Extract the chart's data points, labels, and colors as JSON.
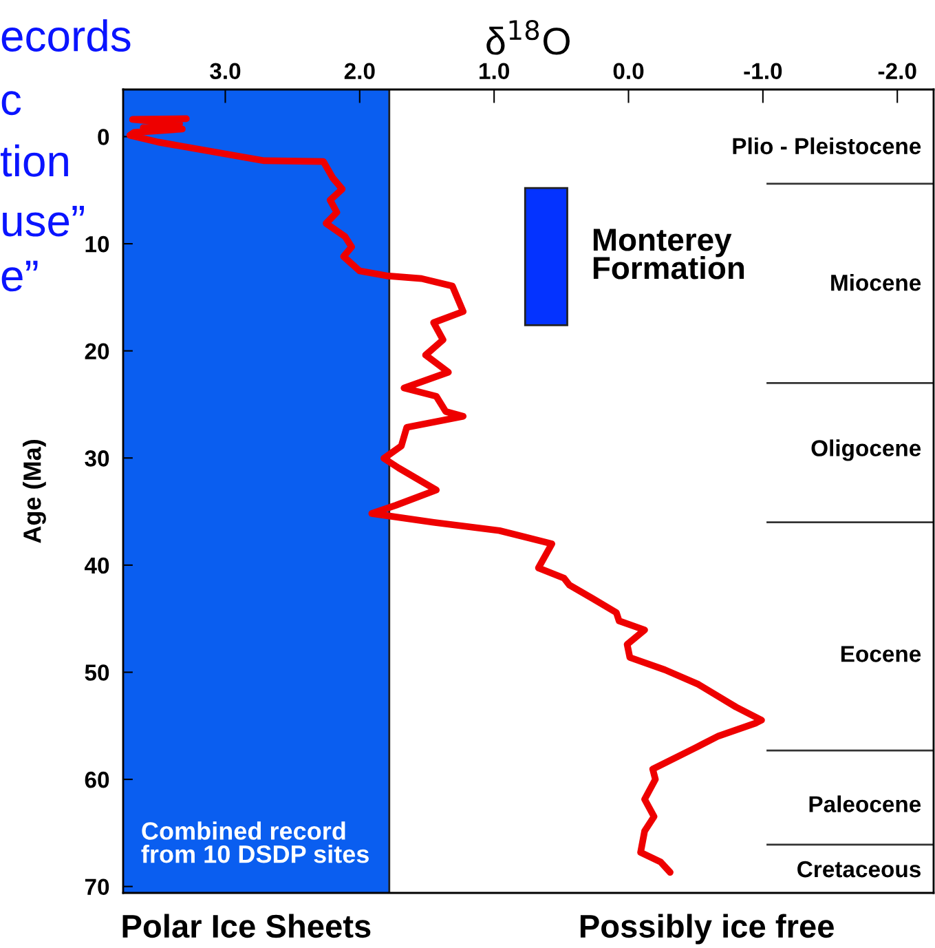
{
  "chart_data": {
    "type": "line",
    "xlabel": "δ$^{18}$O",
    "ylabel": "Age (Ma)",
    "xlim": [
      3.76,
      -2.27
    ],
    "ylim": [
      70.6,
      -4.4
    ],
    "xticks": [
      {
        "value": 3.0,
        "label": "3.0"
      },
      {
        "value": 2.0,
        "label": "2.0"
      },
      {
        "value": 1.0,
        "label": "1.0"
      },
      {
        "value": 0.0,
        "label": "0.0"
      },
      {
        "value": -1.0,
        "label": "-1.0"
      },
      {
        "value": -2.0,
        "label": "-2.0"
      }
    ],
    "yticks": [
      0,
      10,
      20,
      30,
      40,
      50,
      60,
      70
    ],
    "series": [
      {
        "color": "#ee0000",
        "x": [
          3.29,
          3.69,
          3.34,
          3.61,
          3.32,
          3.68,
          3.71,
          3.5,
          2.71,
          2.27,
          2.2,
          2.13,
          2.22,
          2.17,
          2.25,
          2.11,
          2.06,
          2.12,
          2.0,
          1.8,
          1.54,
          1.31,
          1.23,
          1.45,
          1.38,
          1.51,
          1.34,
          1.67,
          1.43,
          1.36,
          1.23,
          1.65,
          1.69,
          1.82,
          1.71,
          1.43,
          1.73,
          1.91,
          1.45,
          0.96,
          0.57,
          0.67,
          0.48,
          0.44,
          0.27,
          0.09,
          0.07,
          -0.12,
          0.01,
          -0.01,
          -0.27,
          -0.52,
          -0.8,
          -0.99,
          -0.95,
          -0.67,
          -0.5,
          -0.18,
          -0.2,
          -0.12,
          -0.19,
          -0.12,
          -0.09,
          -0.24,
          -0.31
        ],
        "values": [
          -1.67,
          -1.61,
          -1.22,
          -0.84,
          -0.71,
          -0.39,
          -0.13,
          0.51,
          2.25,
          2.32,
          3.86,
          4.89,
          5.92,
          7.07,
          8.1,
          9.32,
          10.29,
          11.19,
          12.54,
          12.99,
          13.25,
          13.95,
          16.33,
          17.36,
          18.97,
          20.39,
          21.99,
          23.47,
          24.24,
          25.66,
          26.11,
          27.14,
          28.87,
          30.03,
          30.93,
          32.99,
          34.41,
          35.18,
          36.01,
          36.78,
          38.01,
          40.26,
          41.22,
          41.86,
          43.09,
          44.44,
          45.21,
          46.05,
          47.4,
          48.62,
          49.77,
          51.13,
          53.25,
          54.47,
          54.73,
          55.95,
          57.04,
          59.04,
          60.0,
          61.86,
          63.47,
          64.82,
          66.82,
          67.72,
          68.68
        ]
      }
    ],
    "bands": [
      {
        "axis": "x",
        "from": 3.76,
        "to": 1.78,
        "label": "Polar Ice Sheets",
        "color": "#0a5ef0"
      },
      {
        "axis": "y",
        "from": 4.8,
        "to": 17.6,
        "label": "Monterey\nFormation",
        "color": "#0433ff"
      }
    ],
    "ref_lines": [
      {
        "axis": "x",
        "value": 1.78,
        "color": "#222222"
      },
      {
        "axis": "y",
        "value": 4.4,
        "color": "#333333"
      },
      {
        "axis": "y",
        "value": 23.0,
        "color": "#333333"
      },
      {
        "axis": "y",
        "value": 36.0,
        "color": "#333333"
      },
      {
        "axis": "y",
        "value": 57.3,
        "color": "#333333"
      },
      {
        "axis": "y",
        "value": 66.1,
        "color": "#333333"
      }
    ],
    "annotations": [
      "Combined record\nfrom 10 DSDP sites",
      "Possibly ice free",
      "ecords",
      "c",
      "tion",
      "use”",
      "e”",
      "Plio - Pleistocene",
      "Miocene",
      "Oligocene",
      "Eocene",
      "Paleocene",
      "Cretaceous"
    ],
    "grid": false,
    "legend": false
  }
}
